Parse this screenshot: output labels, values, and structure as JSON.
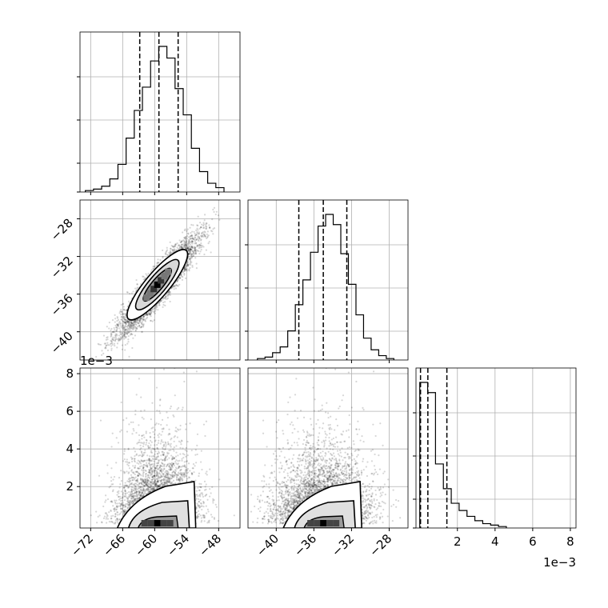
{
  "chart_data": {
    "type": "corner",
    "variables": [
      {
        "index": 0,
        "range": [
          -74,
          -44
        ],
        "ticks": [
          -72,
          -66,
          -60,
          -54,
          -48
        ],
        "tick_labels": [
          "−72",
          "−66",
          "−60",
          "−54",
          "−48"
        ],
        "quantiles": [
          -62.8,
          -59.2,
          -55.6
        ]
      },
      {
        "index": 1,
        "range": [
          -43,
          -26
        ],
        "ticks": [
          -40,
          -36,
          -32,
          -28
        ],
        "tick_labels": [
          "−40",
          "−36",
          "−32",
          "−28"
        ],
        "quantiles": [
          -37.6,
          -35.0,
          -32.5
        ]
      },
      {
        "index": 2,
        "range": [
          -0.0002,
          0.0083
        ],
        "ticks": [
          0.002,
          0.004,
          0.006,
          0.008
        ],
        "tick_labels": [
          "2",
          "4",
          "6",
          "8"
        ],
        "offset_label": "1e−3",
        "quantiles": [
          4e-05,
          0.00043,
          0.00144
        ]
      }
    ],
    "histograms": [
      {
        "var": 0,
        "counts": [
          1,
          2,
          4,
          9,
          19,
          37,
          56,
          72,
          90,
          100,
          92,
          71,
          53,
          30,
          14,
          6,
          3
        ]
      },
      {
        "var": 1,
        "counts": [
          1,
          2,
          5,
          9,
          20,
          38,
          55,
          74,
          92,
          100,
          93,
          73,
          52,
          31,
          15,
          7,
          3,
          1
        ]
      },
      {
        "var": 2,
        "counts": [
          100,
          93,
          44,
          27,
          17,
          12,
          8,
          5,
          3,
          2,
          1
        ]
      }
    ],
    "pair_plots": [
      {
        "x_var": 0,
        "y_var": 1,
        "correlation": "positive, linear",
        "density_peak": [
          -59.5,
          -35.0
        ]
      },
      {
        "x_var": 0,
        "y_var": 2,
        "correlation": "weak",
        "density_peak": [
          -59.5,
          0.0002
        ]
      },
      {
        "x_var": 1,
        "y_var": 2,
        "correlation": "weak",
        "density_peak": [
          -35.0,
          0.0002
        ]
      }
    ],
    "grid": true
  }
}
